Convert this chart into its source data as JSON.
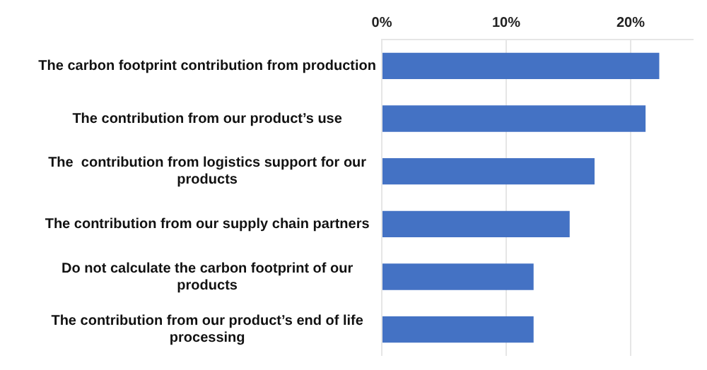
{
  "chart_data": {
    "type": "bar",
    "orientation": "horizontal",
    "categories": [
      "The carbon footprint contribution from production",
      "The contribution from our product’s use",
      "The  contribution from logistics support for our products",
      "The contribution from our supply chain partners",
      "Do not calculate the carbon footprint of our products",
      "The contribution from our product’s end of life processing"
    ],
    "values": [
      22.3,
      21.2,
      17.1,
      15.1,
      12.2,
      12.2
    ],
    "color": "#4472c4",
    "xlim": [
      0,
      25
    ],
    "xticks": [
      {
        "value": 0,
        "label": "0%"
      },
      {
        "value": 10,
        "label": "10%"
      },
      {
        "value": 20,
        "label": "20%"
      }
    ],
    "grid": "x",
    "legend": false
  }
}
